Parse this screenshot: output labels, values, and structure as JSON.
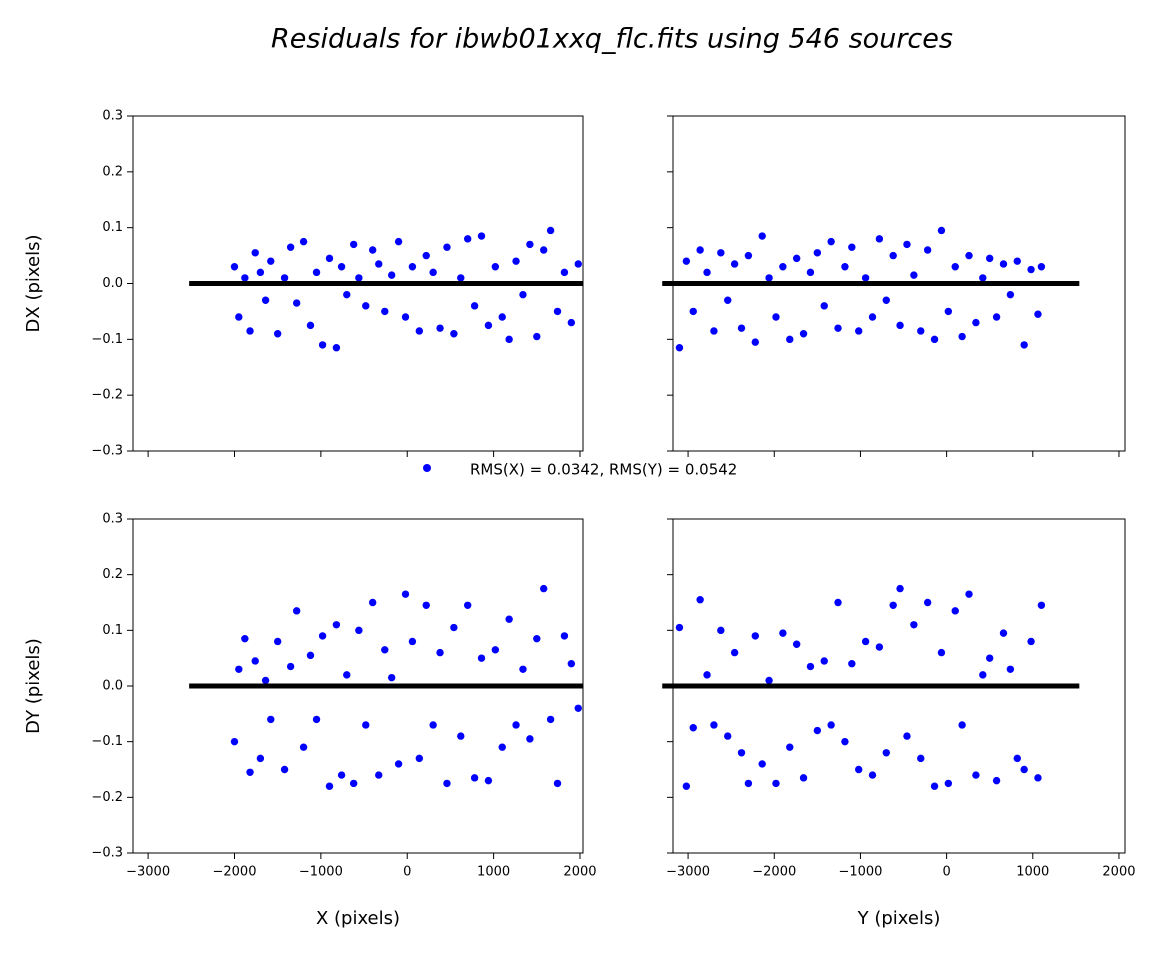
{
  "figure": {
    "title": "Residuals for ibwb01xxq_flc.fits using 546 sources",
    "legend": {
      "label": "RMS(X) = 0.0342, RMS(Y) = 0.0542",
      "color": "#0000ff"
    }
  },
  "chart_data": [
    {
      "type": "scatter",
      "ylabel": "DX (pixels)",
      "xticklabels": false,
      "yticklabels": true,
      "xlim": [
        -3175,
        2035
      ],
      "ylim": [
        -0.3,
        0.3
      ],
      "xticks": [
        {
          "value": -3000,
          "label": "−3000"
        },
        {
          "value": -2000,
          "label": "−2000"
        },
        {
          "value": -1000,
          "label": "−1000"
        },
        0,
        1000,
        2000
      ],
      "yticks": [
        {
          "value": -0.3,
          "label": "−0.3"
        },
        {
          "value": -0.2,
          "label": "−0.2"
        },
        {
          "value": -0.1,
          "label": "−0.1"
        },
        {
          "value": 0,
          "label": "0.0"
        },
        0.1,
        0.2,
        0.3
      ],
      "x": [
        -2000,
        -1950,
        -1880,
        -1820,
        -1760,
        -1700,
        -1640,
        -1580,
        -1500,
        -1420,
        -1350,
        -1280,
        -1200,
        -1120,
        -1050,
        -980,
        -900,
        -820,
        -760,
        -700,
        -620,
        -560,
        -480,
        -400,
        -330,
        -260,
        -180,
        -100,
        -20,
        60,
        140,
        220,
        300,
        380,
        460,
        540,
        620,
        700,
        780,
        860,
        940,
        1020,
        1100,
        1180,
        1260,
        1340,
        1420,
        1500,
        1580,
        1660,
        1740,
        1820,
        1900,
        1980
      ],
      "series": [
        {
          "color": "#0000ff",
          "values": [
            0.03,
            -0.06,
            0.01,
            -0.085,
            0.055,
            0.02,
            -0.03,
            0.04,
            -0.09,
            0.01,
            0.065,
            -0.035,
            0.075,
            -0.075,
            0.02,
            -0.11,
            0.045,
            -0.115,
            0.03,
            -0.02,
            0.07,
            0.01,
            -0.04,
            0.06,
            0.035,
            -0.05,
            0.015,
            0.075,
            -0.06,
            0.03,
            -0.085,
            0.05,
            0.02,
            -0.08,
            0.065,
            -0.09,
            0.01,
            0.08,
            -0.04,
            0.085,
            -0.075,
            0.03,
            -0.06,
            -0.1,
            0.04,
            -0.02,
            0.07,
            -0.095,
            0.06,
            0.095,
            -0.05,
            0.02,
            -0.07,
            0.035
          ]
        }
      ],
      "line": {
        "color": "#000000",
        "x": [
          -2525,
          2035
        ],
        "y": [
          0,
          0
        ]
      }
    },
    {
      "type": "scatter",
      "xticklabels": false,
      "yticklabels": false,
      "xlim": [
        -3175,
        2070
      ],
      "ylim": [
        -0.3,
        0.3
      ],
      "xticks": [
        {
          "value": -3000,
          "label": "−3000"
        },
        {
          "value": -2000,
          "label": "−2000"
        },
        {
          "value": -1000,
          "label": "−1000"
        },
        0,
        1000,
        2000
      ],
      "yticks": [
        {
          "value": -0.3,
          "label": "−0.3"
        },
        {
          "value": -0.2,
          "label": "−0.2"
        },
        {
          "value": -0.1,
          "label": "−0.1"
        },
        {
          "value": 0,
          "label": "0.0"
        },
        0.1,
        0.2,
        0.3
      ],
      "x": [
        -3100,
        -3020,
        -2940,
        -2860,
        -2780,
        -2700,
        -2620,
        -2540,
        -2460,
        -2380,
        -2300,
        -2220,
        -2140,
        -2060,
        -1980,
        -1900,
        -1820,
        -1740,
        -1660,
        -1580,
        -1500,
        -1420,
        -1340,
        -1260,
        -1180,
        -1100,
        -1020,
        -940,
        -860,
        -780,
        -700,
        -620,
        -540,
        -460,
        -380,
        -300,
        -220,
        -140,
        -60,
        20,
        100,
        180,
        260,
        340,
        420,
        500,
        580,
        660,
        740,
        820,
        900,
        980,
        1060,
        1100
      ],
      "series": [
        {
          "color": "#0000ff",
          "values": [
            -0.115,
            0.04,
            -0.05,
            0.06,
            0.02,
            -0.085,
            0.055,
            -0.03,
            0.035,
            -0.08,
            0.05,
            -0.105,
            0.085,
            0.01,
            -0.06,
            0.03,
            -0.1,
            0.045,
            -0.09,
            0.02,
            0.055,
            -0.04,
            0.075,
            -0.08,
            0.03,
            0.065,
            -0.085,
            0.01,
            -0.06,
            0.08,
            -0.03,
            0.05,
            -0.075,
            0.07,
            0.015,
            -0.085,
            0.06,
            -0.1,
            0.095,
            -0.05,
            0.03,
            -0.095,
            0.05,
            -0.07,
            0.01,
            0.045,
            -0.06,
            0.035,
            -0.02,
            0.04,
            -0.11,
            0.025,
            -0.055,
            0.03
          ]
        }
      ],
      "line": {
        "color": "#000000",
        "x": [
          -3300,
          1540
        ],
        "y": [
          0,
          0
        ]
      }
    },
    {
      "type": "scatter",
      "xlabel": "X (pixels)",
      "ylabel": "DY (pixels)",
      "xticklabels": true,
      "yticklabels": true,
      "xlim": [
        -3175,
        2035
      ],
      "ylim": [
        -0.3,
        0.3
      ],
      "xticks": [
        {
          "value": -3000,
          "label": "−3000"
        },
        {
          "value": -2000,
          "label": "−2000"
        },
        {
          "value": -1000,
          "label": "−1000"
        },
        0,
        1000,
        2000
      ],
      "yticks": [
        {
          "value": -0.3,
          "label": "−0.3"
        },
        {
          "value": -0.2,
          "label": "−0.2"
        },
        {
          "value": -0.1,
          "label": "−0.1"
        },
        {
          "value": 0,
          "label": "0.0"
        },
        0.1,
        0.2,
        0.3
      ],
      "x": [
        -2000,
        -1950,
        -1880,
        -1820,
        -1760,
        -1700,
        -1640,
        -1580,
        -1500,
        -1420,
        -1350,
        -1280,
        -1200,
        -1120,
        -1050,
        -980,
        -900,
        -820,
        -760,
        -700,
        -620,
        -560,
        -480,
        -400,
        -330,
        -260,
        -180,
        -100,
        -20,
        60,
        140,
        220,
        300,
        380,
        460,
        540,
        620,
        700,
        780,
        860,
        940,
        1020,
        1100,
        1180,
        1260,
        1340,
        1420,
        1500,
        1580,
        1660,
        1740,
        1820,
        1900,
        1980
      ],
      "series": [
        {
          "color": "#0000ff",
          "values": [
            -0.1,
            0.03,
            0.085,
            -0.155,
            0.045,
            -0.13,
            0.01,
            -0.06,
            0.08,
            -0.15,
            0.035,
            0.135,
            -0.11,
            0.055,
            -0.06,
            0.09,
            -0.18,
            0.11,
            -0.16,
            0.02,
            -0.175,
            0.1,
            -0.07,
            0.15,
            -0.16,
            0.065,
            0.015,
            -0.14,
            0.165,
            0.08,
            -0.13,
            0.145,
            -0.07,
            0.06,
            -0.175,
            0.105,
            -0.09,
            0.145,
            -0.165,
            0.05,
            -0.17,
            0.065,
            -0.11,
            0.12,
            -0.07,
            0.03,
            -0.095,
            0.085,
            0.175,
            -0.06,
            -0.175,
            0.09,
            0.04,
            -0.04
          ]
        }
      ],
      "line": {
        "color": "#000000",
        "x": [
          -2525,
          2035
        ],
        "y": [
          0,
          0
        ]
      }
    },
    {
      "type": "scatter",
      "xlabel": "Y (pixels)",
      "xticklabels": true,
      "yticklabels": false,
      "xlim": [
        -3175,
        2070
      ],
      "ylim": [
        -0.3,
        0.3
      ],
      "xticks": [
        {
          "value": -3000,
          "label": "−3000"
        },
        {
          "value": -2000,
          "label": "−2000"
        },
        {
          "value": -1000,
          "label": "−1000"
        },
        0,
        1000,
        2000
      ],
      "yticks": [
        {
          "value": -0.3,
          "label": "−0.3"
        },
        {
          "value": -0.2,
          "label": "−0.2"
        },
        {
          "value": -0.1,
          "label": "−0.1"
        },
        {
          "value": 0,
          "label": "0.0"
        },
        0.1,
        0.2,
        0.3
      ],
      "x": [
        -3100,
        -3020,
        -2940,
        -2860,
        -2780,
        -2700,
        -2620,
        -2540,
        -2460,
        -2380,
        -2300,
        -2220,
        -2140,
        -2060,
        -1980,
        -1900,
        -1820,
        -1740,
        -1660,
        -1580,
        -1500,
        -1420,
        -1340,
        -1260,
        -1180,
        -1100,
        -1020,
        -940,
        -860,
        -780,
        -700,
        -620,
        -540,
        -460,
        -380,
        -300,
        -220,
        -140,
        -60,
        20,
        100,
        180,
        260,
        340,
        420,
        500,
        580,
        660,
        740,
        820,
        900,
        980,
        1060,
        1100
      ],
      "series": [
        {
          "color": "#0000ff",
          "values": [
            0.105,
            -0.18,
            -0.075,
            0.155,
            0.02,
            -0.07,
            0.1,
            -0.09,
            0.06,
            -0.12,
            -0.175,
            0.09,
            -0.14,
            0.01,
            -0.175,
            0.095,
            -0.11,
            0.075,
            -0.165,
            0.035,
            -0.08,
            0.045,
            -0.07,
            0.15,
            -0.1,
            0.04,
            -0.15,
            0.08,
            -0.16,
            0.07,
            -0.12,
            0.145,
            0.175,
            -0.09,
            0.11,
            -0.13,
            0.15,
            -0.18,
            0.06,
            -0.175,
            0.135,
            -0.07,
            0.165,
            -0.16,
            0.02,
            0.05,
            -0.17,
            0.095,
            0.03,
            -0.13,
            -0.15,
            0.08,
            -0.165,
            0.145
          ]
        }
      ],
      "line": {
        "color": "#000000",
        "x": [
          -3300,
          1540
        ],
        "y": [
          0,
          0
        ]
      }
    }
  ]
}
